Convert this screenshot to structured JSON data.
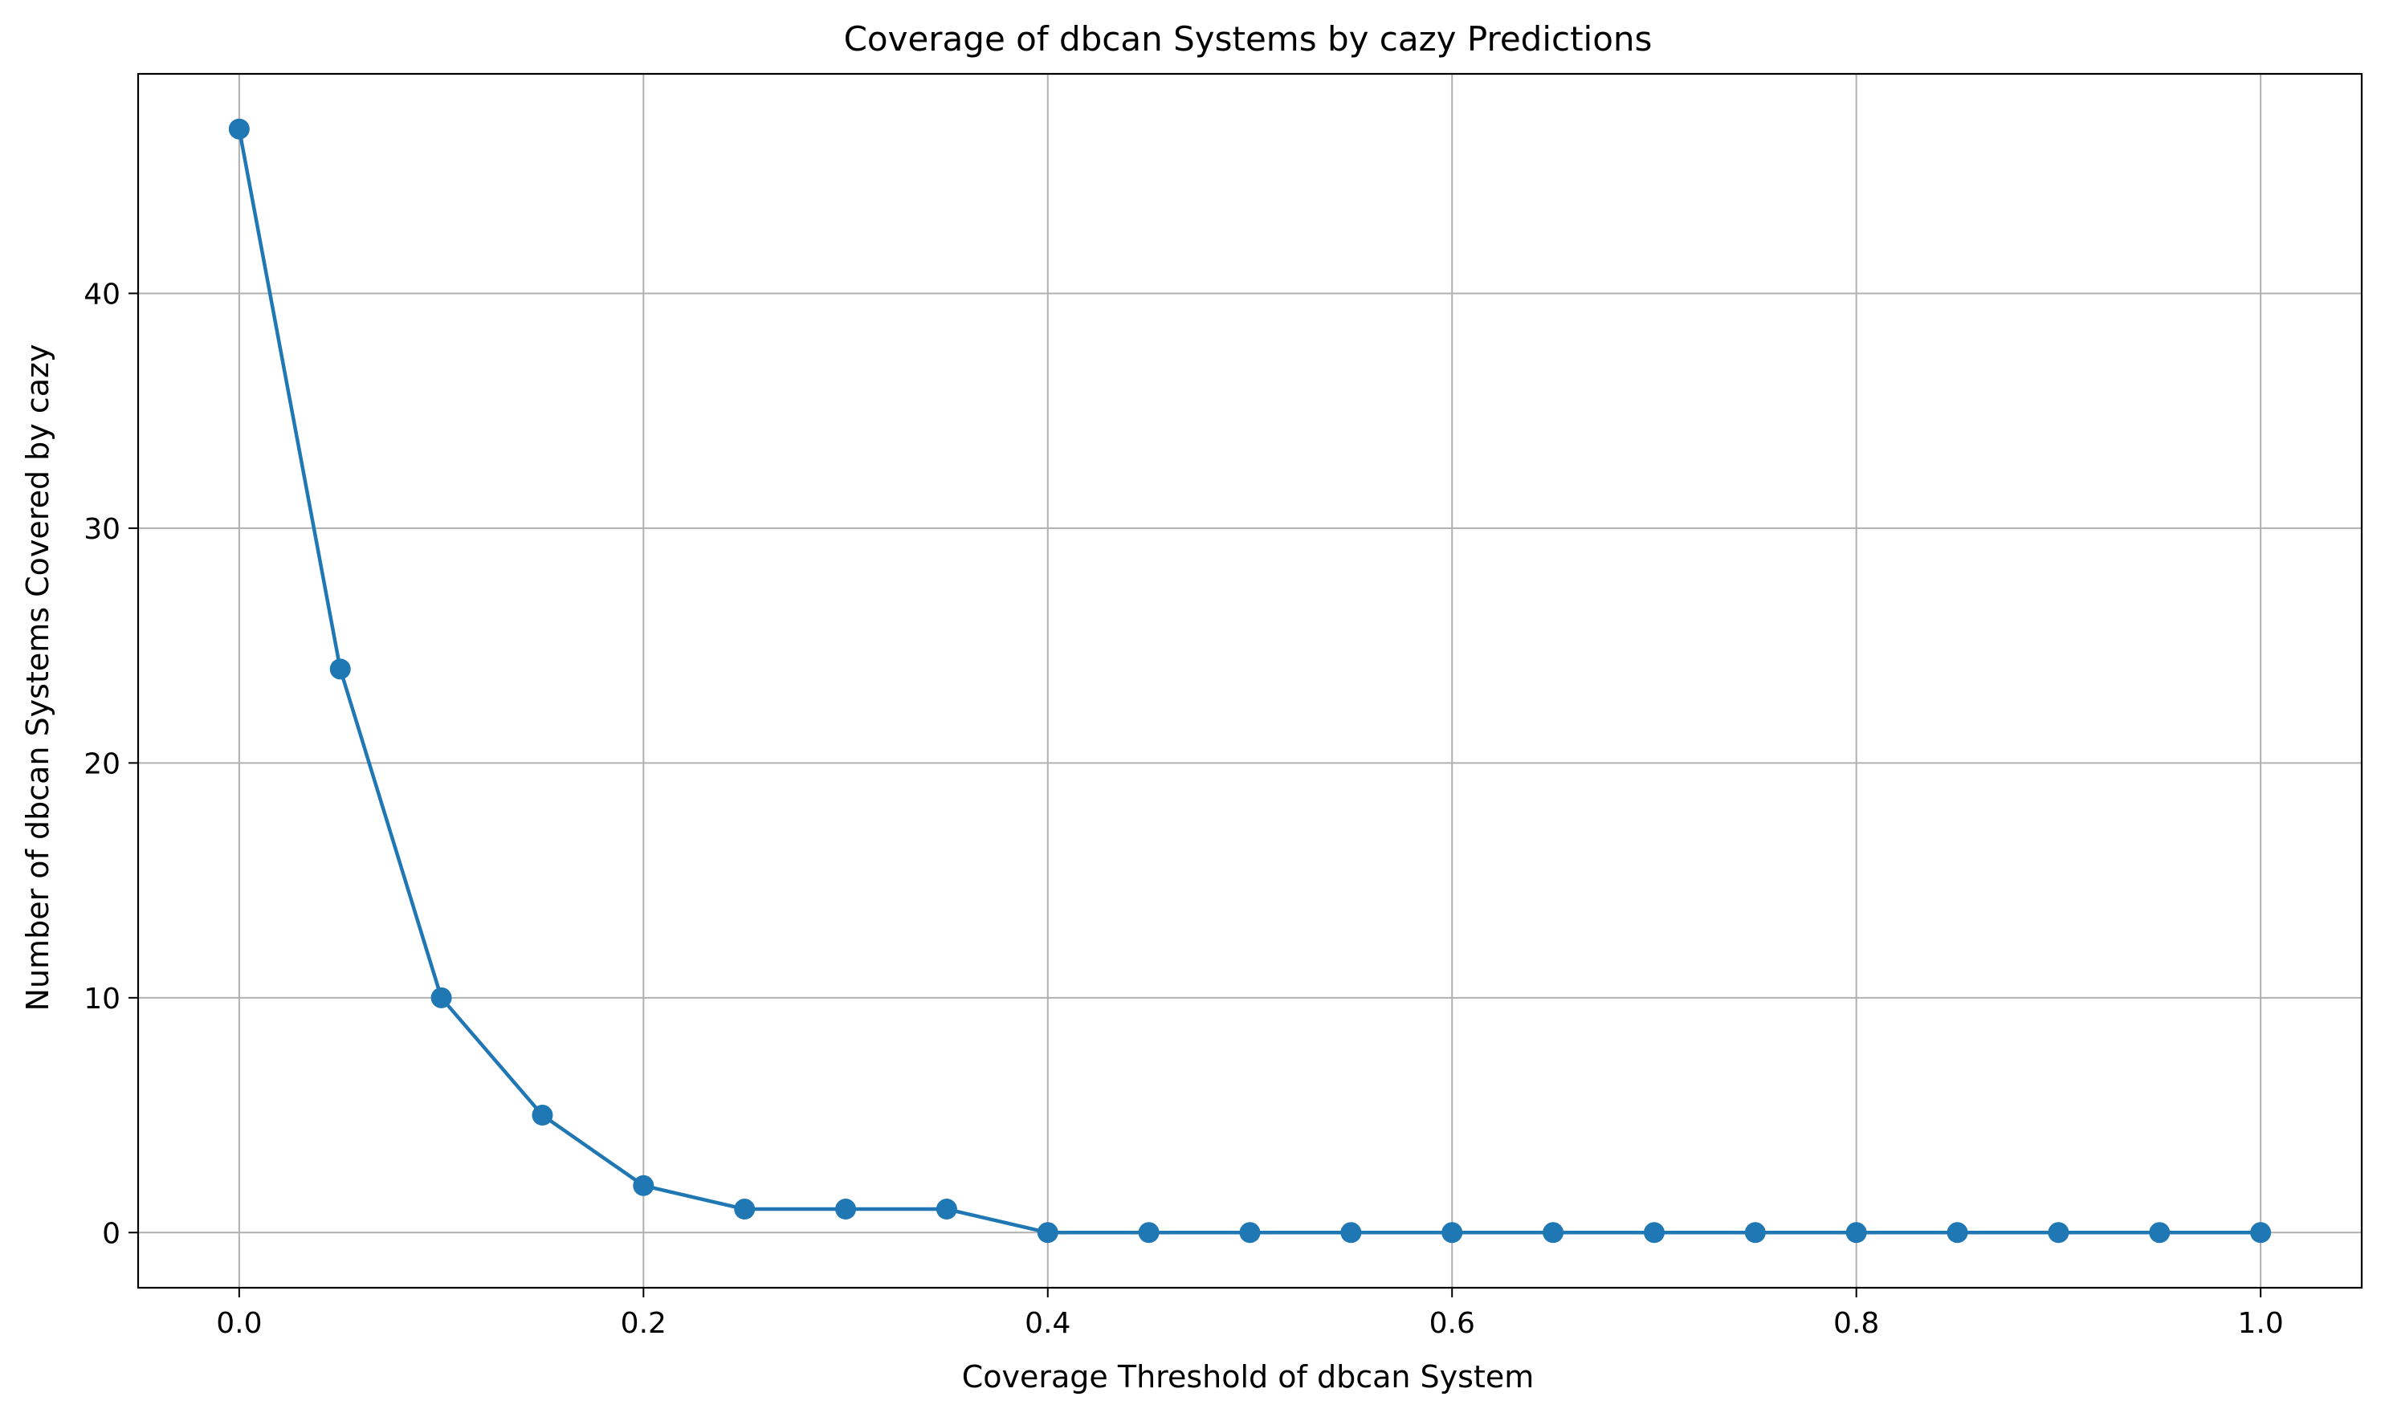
{
  "chart_data": {
    "type": "line",
    "title": "Coverage of dbcan Systems by cazy Predictions",
    "xlabel": "Coverage Threshold of dbcan System",
    "ylabel": "Number of dbcan Systems Covered by cazy",
    "x": [
      0.0,
      0.05,
      0.1,
      0.15,
      0.2,
      0.25,
      0.3,
      0.35,
      0.4,
      0.45,
      0.5,
      0.55,
      0.6,
      0.65,
      0.7,
      0.75,
      0.8,
      0.85,
      0.9,
      0.95,
      1.0
    ],
    "series": [
      {
        "values": [
          47,
          24,
          10,
          5,
          2,
          1,
          1,
          1,
          0,
          0,
          0,
          0,
          0,
          0,
          0,
          0,
          0,
          0,
          0,
          0,
          0
        ]
      }
    ],
    "xlim": [
      -0.05,
      1.05
    ],
    "ylim": [
      -2.35,
      49.35
    ],
    "xticks": [
      "0.0",
      "0.2",
      "0.4",
      "0.6",
      "0.8",
      "1.0"
    ],
    "xtick_values": [
      0.0,
      0.2,
      0.4,
      0.6,
      0.8,
      1.0
    ],
    "yticks": [
      "0",
      "10",
      "20",
      "30",
      "40"
    ],
    "ytick_values": [
      0,
      10,
      20,
      30,
      40
    ],
    "grid": true,
    "line_color": "#1f77b4",
    "marker": "circle",
    "grid_color": "#b0b0b0"
  }
}
